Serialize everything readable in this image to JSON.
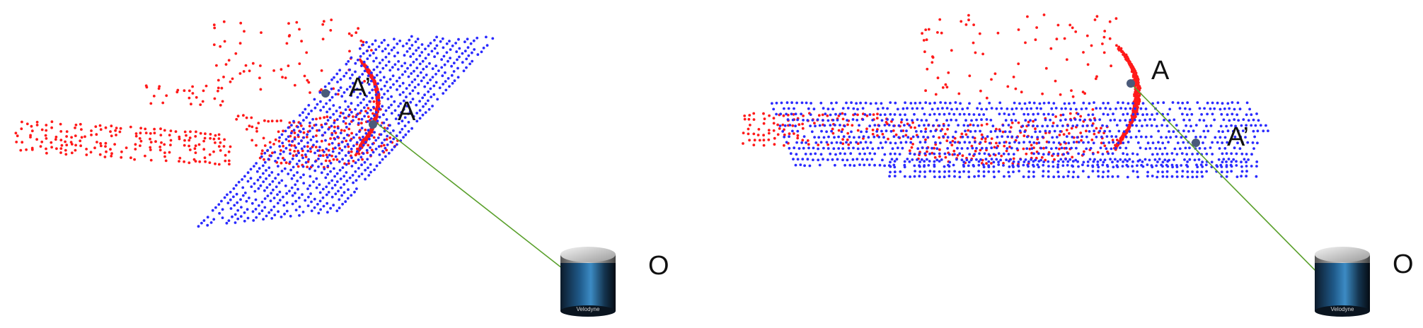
{
  "panels": [
    {
      "id": "left",
      "labels": {
        "a": "A",
        "a_prime": "A’",
        "origin": "O"
      },
      "sensor_text": "Velodyne"
    },
    {
      "id": "right",
      "labels": {
        "a": "A",
        "a_prime": "A’",
        "origin": "O"
      },
      "sensor_text": "Velodyne"
    }
  ],
  "colors": {
    "red_points": "#ff1a1a",
    "blue_points": "#2b2bff",
    "ray": "#5aa02c",
    "marker": "#4a5a7a"
  }
}
